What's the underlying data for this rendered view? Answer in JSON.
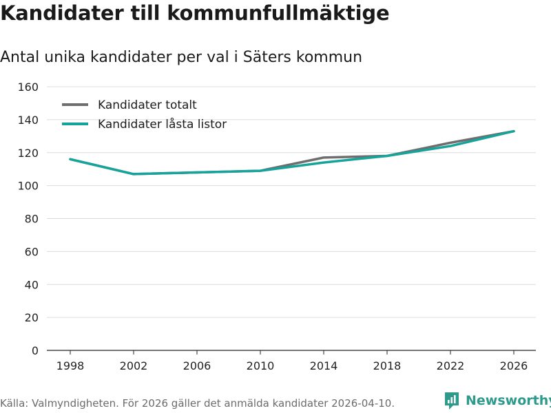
{
  "chart_data": {
    "type": "line",
    "title": "Kandidater till kommunfullmäktige",
    "subtitle": "Antal unika kandidater per val i Säters kommun",
    "xlabel": "",
    "ylabel": "",
    "x": [
      1998,
      2002,
      2006,
      2010,
      2014,
      2018,
      2022,
      2026
    ],
    "x_ticks": [
      "1998",
      "2002",
      "2006",
      "2010",
      "2014",
      "2018",
      "2022",
      "2026"
    ],
    "y_ticks": [
      "0",
      "20",
      "40",
      "60",
      "80",
      "100",
      "120",
      "140",
      "160"
    ],
    "ylim": [
      0,
      160
    ],
    "grid": true,
    "legend_position": "top-left",
    "series": [
      {
        "name": "Kandidater totalt",
        "color": "#6e6e6e",
        "values": [
          116,
          107,
          108,
          109,
          117,
          118,
          126,
          133
        ]
      },
      {
        "name": "Kandidater låsta listor",
        "color": "#16a39a",
        "values": [
          116,
          107,
          108,
          109,
          114,
          118,
          124,
          133
        ]
      }
    ]
  },
  "source_note": "Källa: Valmyndigheten. För 2026 gäller det anmälda kandidater 2026-04-10.",
  "brand": {
    "name": "Newsworthy",
    "color": "#2e9a8c",
    "icon": "newsworthy-chart-icon"
  }
}
